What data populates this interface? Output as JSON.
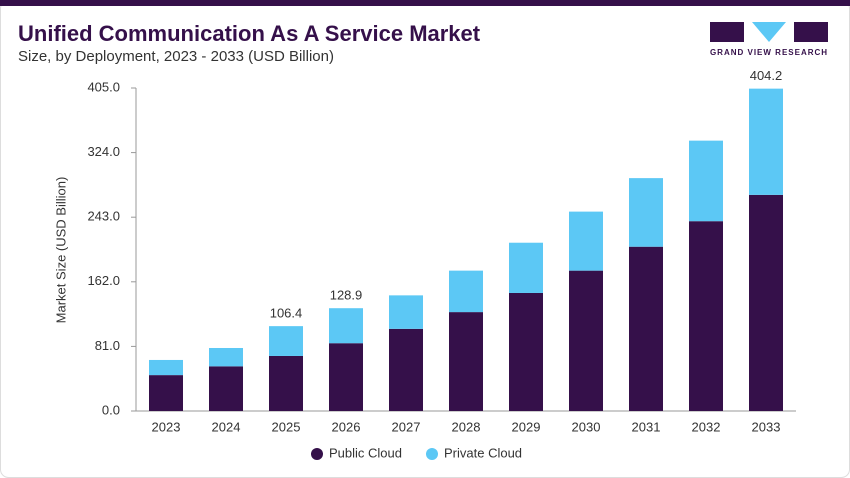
{
  "chart_data": {
    "type": "stacked_bar",
    "title": "Unified Communication As A Service Market",
    "subtitle": "Size, by Deployment, 2023 - 2033 (USD Billion)",
    "brand": "GRAND VIEW RESEARCH",
    "ylabel": "Market Size (USD Billion)",
    "categories": [
      "2023",
      "2024",
      "2025",
      "2026",
      "2027",
      "2028",
      "2029",
      "2030",
      "2031",
      "2032",
      "2033"
    ],
    "series": [
      {
        "name": "Public Cloud",
        "color": "#35104a",
        "values": [
          45,
          56,
          69,
          85,
          103,
          124,
          148,
          176,
          206,
          238,
          271
        ]
      },
      {
        "name": "Private Cloud",
        "color": "#5cc8f5",
        "values": [
          19,
          23,
          37.4,
          43.9,
          42,
          52,
          63,
          74,
          86,
          101,
          133.2
        ]
      }
    ],
    "totals": [
      null,
      null,
      106.4,
      128.9,
      null,
      null,
      null,
      null,
      null,
      null,
      404.2
    ],
    "ylim": [
      0,
      405
    ],
    "yticks": [
      {
        "value": 0,
        "label": "0.0"
      },
      {
        "value": 81,
        "label": "81.0"
      },
      {
        "value": 162,
        "label": "162.0"
      },
      {
        "value": 243,
        "label": "243.0"
      },
      {
        "value": 324,
        "label": "324.0"
      },
      {
        "value": 405,
        "label": "405.0"
      }
    ],
    "grid": false,
    "legend": "bottom"
  }
}
